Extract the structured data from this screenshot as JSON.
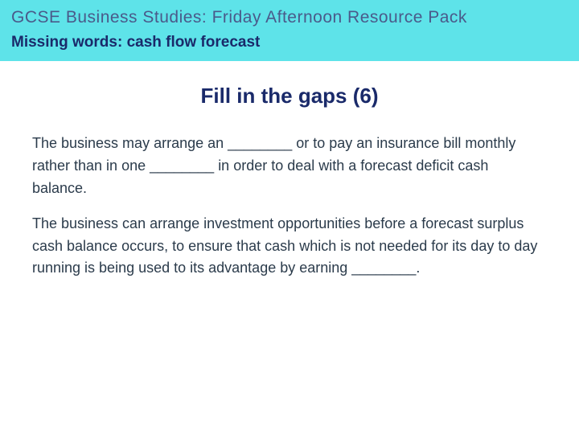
{
  "colors": {
    "header_bg": "#5ee3e9",
    "header_title_color": "#4a5a8a",
    "header_sub_color": "#1a2a6a",
    "content_title_color": "#1a2a6a",
    "body_text_color": "#2b3b4b"
  },
  "header": {
    "title": "GCSE Business Studies: Friday Afternoon Resource Pack",
    "subtitle": "Missing words: cash flow forecast"
  },
  "content": {
    "title": "Fill in the gaps (6)",
    "paragraphs": [
      "The business may arrange an ________  or to pay an insurance bill monthly rather than in one ________  in order to deal with a forecast deficit cash balance.",
      "The business can arrange investment opportunities before a forecast surplus cash balance occurs, to ensure that cash which is not needed for its day to day running is being used to its advantage by earning ________."
    ]
  },
  "typography": {
    "header_title_fontsize": 21,
    "header_sub_fontsize": 19,
    "content_title_fontsize": 26,
    "body_fontsize": 18
  }
}
